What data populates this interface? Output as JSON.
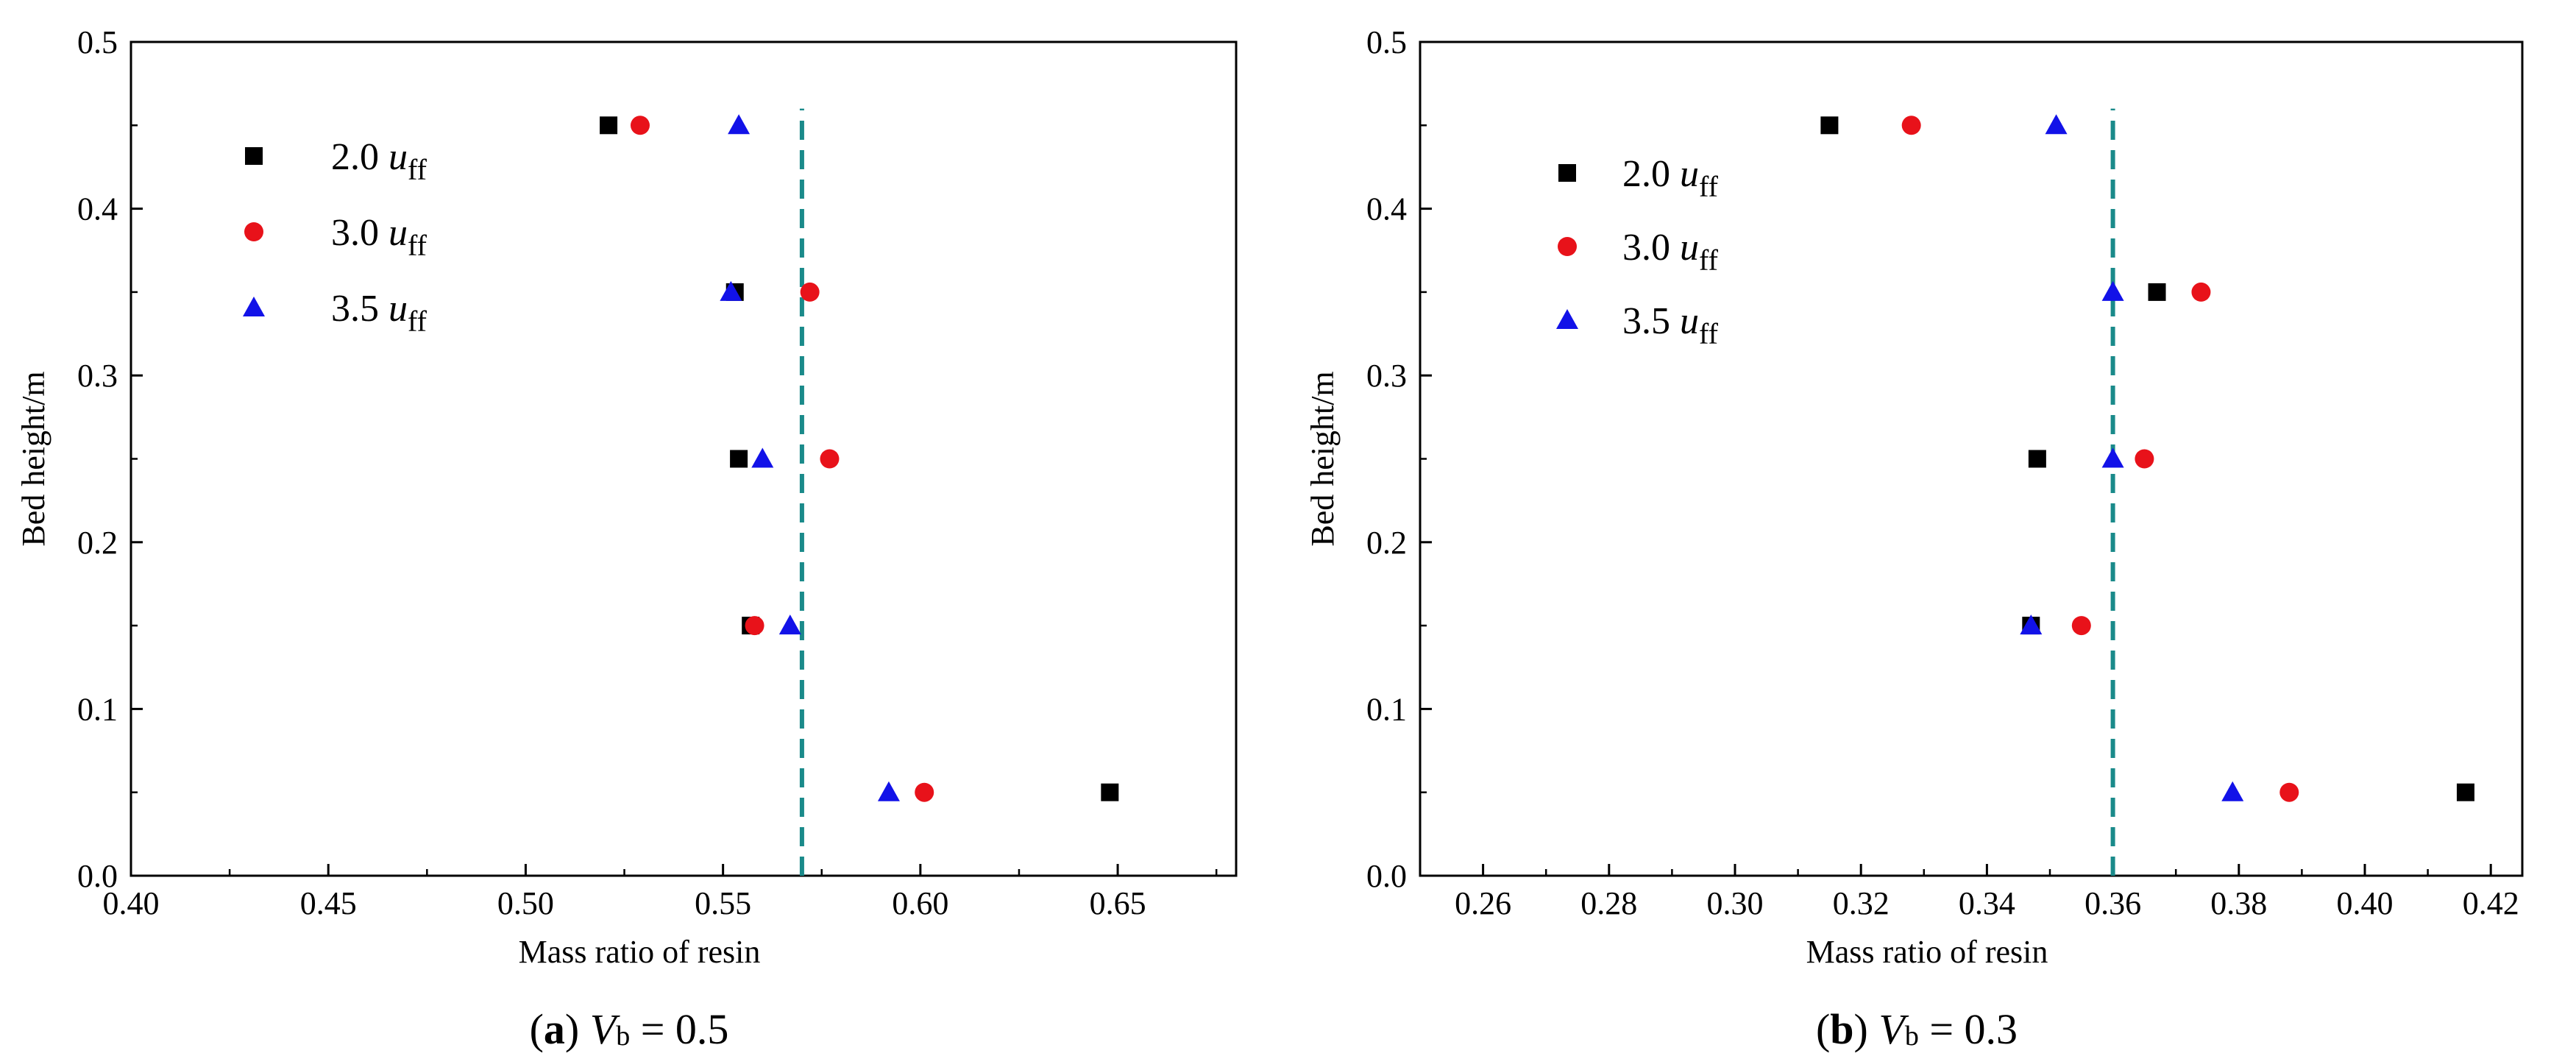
{
  "chart_data": [
    {
      "type": "scatter",
      "panel_label": "a",
      "caption": {
        "label": "a",
        "var": "V",
        "sub": "b",
        "rest": "= 0.5"
      },
      "xlabel": "Mass ratio of resin",
      "ylabel": "Bed height/m",
      "xlim": [
        0.4,
        0.68
      ],
      "ylim": [
        0.0,
        0.5
      ],
      "xticks": [
        0.4,
        0.45,
        0.5,
        0.55,
        0.6,
        0.65
      ],
      "xtick_labels": [
        "0.40",
        "0.45",
        "0.50",
        "0.55",
        "0.60",
        "0.65"
      ],
      "yticks": [
        0.0,
        0.1,
        0.2,
        0.3,
        0.4,
        0.5
      ],
      "ytick_labels": [
        "0.0",
        "0.1",
        "0.2",
        "0.3",
        "0.4",
        "0.5"
      ],
      "reference_line": {
        "x": 0.57,
        "ymax": 0.46,
        "color": "#1a8a8a"
      },
      "legend": {
        "placement": "top-left"
      },
      "series": [
        {
          "name": "2.0 u_ff",
          "prefix": "2.0 ",
          "italic": "u",
          "sub": "ff",
          "marker": "square",
          "color": "#000000",
          "points": [
            [
              0.521,
              0.45
            ],
            [
              0.553,
              0.35
            ],
            [
              0.554,
              0.25
            ],
            [
              0.557,
              0.15
            ],
            [
              0.648,
              0.05
            ]
          ]
        },
        {
          "name": "3.0 u_ff",
          "prefix": "3.0 ",
          "italic": "u",
          "sub": "ff",
          "marker": "circle",
          "color": "#e8121a",
          "points": [
            [
              0.529,
              0.45
            ],
            [
              0.572,
              0.35
            ],
            [
              0.577,
              0.25
            ],
            [
              0.558,
              0.15
            ],
            [
              0.601,
              0.05
            ]
          ]
        },
        {
          "name": "3.5 u_ff",
          "prefix": "3.5 ",
          "italic": "u",
          "sub": "ff",
          "marker": "triangle",
          "color": "#1212e8",
          "points": [
            [
              0.554,
              0.45
            ],
            [
              0.552,
              0.35
            ],
            [
              0.56,
              0.25
            ],
            [
              0.567,
              0.15
            ],
            [
              0.592,
              0.05
            ]
          ]
        }
      ]
    },
    {
      "type": "scatter",
      "panel_label": "b",
      "caption": {
        "label": "b",
        "var": "V",
        "sub": "b",
        "rest": "= 0.3"
      },
      "xlabel": "Mass ratio of resin",
      "ylabel": "Bed height/m",
      "xlim": [
        0.25,
        0.425
      ],
      "ylim": [
        0.0,
        0.5
      ],
      "xticks": [
        0.26,
        0.28,
        0.3,
        0.32,
        0.34,
        0.36,
        0.38,
        0.4,
        0.42
      ],
      "xtick_labels": [
        "0.26",
        "0.28",
        "0.30",
        "0.32",
        "0.34",
        "0.36",
        "0.38",
        "0.40",
        "0.42"
      ],
      "yticks": [
        0.0,
        0.1,
        0.2,
        0.3,
        0.4,
        0.5
      ],
      "ytick_labels": [
        "0.0",
        "0.1",
        "0.2",
        "0.3",
        "0.4",
        "0.5"
      ],
      "reference_line": {
        "x": 0.36,
        "ymax": 0.46,
        "color": "#1a8a8a"
      },
      "legend": {
        "placement": "top-left"
      },
      "series": [
        {
          "name": "2.0 u_ff",
          "prefix": "2.0 ",
          "italic": "u",
          "sub": "ff",
          "marker": "square",
          "color": "#000000",
          "points": [
            [
              0.315,
              0.45
            ],
            [
              0.367,
              0.35
            ],
            [
              0.348,
              0.25
            ],
            [
              0.347,
              0.15
            ],
            [
              0.416,
              0.05
            ]
          ]
        },
        {
          "name": "3.0 u_ff",
          "prefix": "3.0 ",
          "italic": "u",
          "sub": "ff",
          "marker": "circle",
          "color": "#e8121a",
          "points": [
            [
              0.328,
              0.45
            ],
            [
              0.374,
              0.35
            ],
            [
              0.365,
              0.25
            ],
            [
              0.355,
              0.15
            ],
            [
              0.388,
              0.05
            ]
          ]
        },
        {
          "name": "3.5 u_ff",
          "prefix": "3.5 ",
          "italic": "u",
          "sub": "ff",
          "marker": "triangle",
          "color": "#1212e8",
          "points": [
            [
              0.351,
              0.45
            ],
            [
              0.36,
              0.35
            ],
            [
              0.36,
              0.25
            ],
            [
              0.347,
              0.15
            ],
            [
              0.379,
              0.05
            ]
          ]
        }
      ]
    }
  ]
}
